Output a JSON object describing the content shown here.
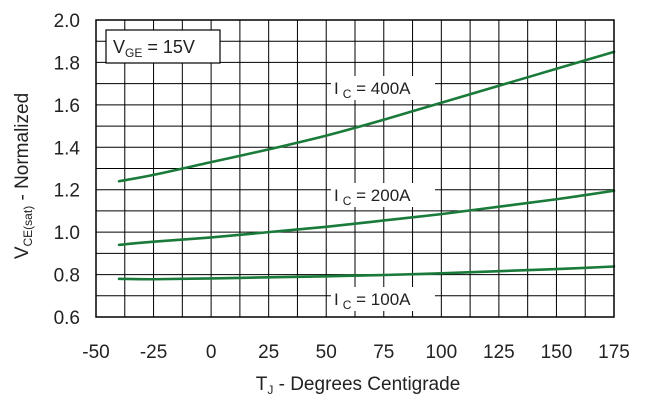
{
  "chart_data": {
    "type": "line",
    "title": "",
    "xlabel": {
      "main": "T",
      "sub": "J",
      "rest": " - Degrees Centigrade"
    },
    "ylabel": {
      "main": "V",
      "sub": "CE(sat)",
      "rest": " - Normalized"
    },
    "xlim": [
      -50,
      175
    ],
    "ylim": [
      0.6,
      2.0
    ],
    "x_ticks": [
      "-50",
      "-25",
      "0",
      "25",
      "50",
      "75",
      "100",
      "125",
      "150",
      "175"
    ],
    "y_ticks": [
      "0.6",
      "0.8",
      "1.0",
      "1.2",
      "1.4",
      "1.6",
      "1.8",
      "2.0"
    ],
    "x_ticks_values": [
      -50,
      -25,
      0,
      25,
      50,
      75,
      100,
      125,
      150,
      175
    ],
    "y_ticks_values": [
      0.6,
      0.8,
      1.0,
      1.2,
      1.4,
      1.6,
      1.8,
      2.0
    ],
    "grid": true,
    "condition": {
      "main": "V",
      "sub": "GE",
      "rest": " = 15V"
    },
    "line_color": "#1a7a3a",
    "series": [
      {
        "label": {
          "main": "I",
          "sub": "C",
          "rest": " = 400A"
        },
        "x": [
          -40,
          -25,
          0,
          25,
          50,
          75,
          100,
          125,
          150,
          175
        ],
        "y": [
          1.24,
          1.27,
          1.33,
          1.39,
          1.455,
          1.53,
          1.61,
          1.69,
          1.77,
          1.85
        ]
      },
      {
        "label": {
          "main": "I",
          "sub": "C",
          "rest": " = 200A"
        },
        "x": [
          -40,
          -25,
          0,
          25,
          50,
          75,
          100,
          125,
          150,
          175
        ],
        "y": [
          0.94,
          0.955,
          0.975,
          1.0,
          1.025,
          1.055,
          1.085,
          1.12,
          1.155,
          1.195
        ]
      },
      {
        "label": {
          "main": "I",
          "sub": "C",
          "rest": " = 100A"
        },
        "x": [
          -40,
          -25,
          0,
          25,
          50,
          75,
          100,
          125,
          150,
          175
        ],
        "y": [
          0.78,
          0.778,
          0.782,
          0.787,
          0.792,
          0.798,
          0.806,
          0.816,
          0.826,
          0.838
        ]
      }
    ]
  }
}
